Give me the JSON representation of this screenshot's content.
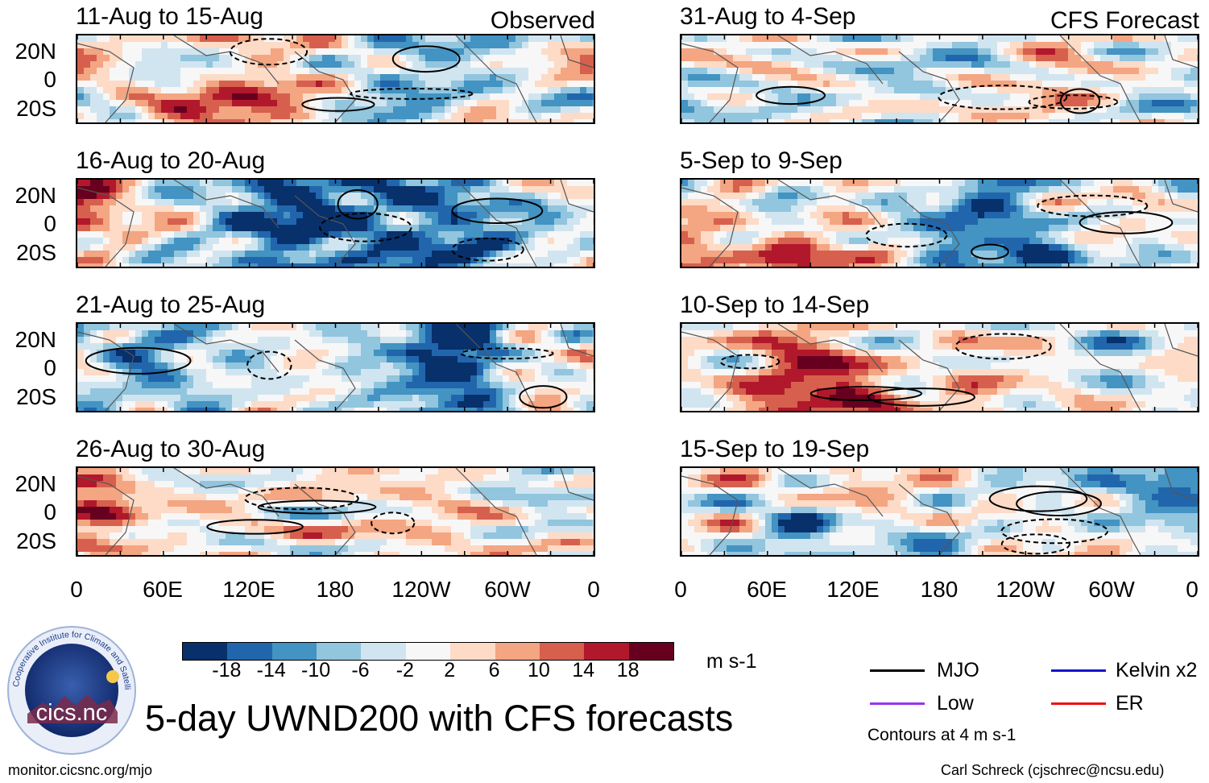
{
  "figure": {
    "main_title": "5-day UWND200 with CFS forecasts",
    "observed_label": "Observed",
    "forecast_label": "CFS Forecast",
    "units_label": "m s-1",
    "contours_note": "Contours at 4 m s-1",
    "website": "monitor.cicsnc.org/mjo",
    "credit": "Carl Schreck (cjschrec@ncsu.edu)",
    "logo": {
      "wordmark": "cics.nc",
      "ring_text": "Cooperative Institute for Climate and Satellites",
      "icon": "globe-logo"
    }
  },
  "chart_data": {
    "type": "heatmap",
    "variable": "200-hPa zonal wind anomaly (5-day means)",
    "units": "m s-1",
    "colorbar": {
      "levels": [
        "-18",
        "-14",
        "-10",
        "-6",
        "-2",
        "2",
        "6",
        "10",
        "14",
        "18"
      ],
      "colors": [
        "#08306b",
        "#2166ac",
        "#4393c3",
        "#92c5de",
        "#d1e5f0",
        "#f7f7f7",
        "#fddbc7",
        "#f4a582",
        "#d6604d",
        "#b2182b",
        "#67001f"
      ]
    },
    "axes": {
      "lat_ticks": [
        "20N",
        "0",
        "20S"
      ],
      "lon_ticks": [
        "0",
        "60E",
        "120E",
        "180",
        "120W",
        "60W",
        "0"
      ],
      "lat_range": [
        -30,
        30
      ],
      "lon_range": [
        0,
        360
      ]
    },
    "legend": [
      {
        "label": "MJO",
        "color": "#000000"
      },
      {
        "label": "Kelvin x2",
        "color": "#1515cc"
      },
      {
        "label": "Low",
        "color": "#9933ee"
      },
      {
        "label": "ER",
        "color": "#ee1111"
      }
    ],
    "contour_interval": 4,
    "panels": [
      {
        "period": "11-Aug to 15-Aug",
        "kind": "Observed",
        "seed": 11
      },
      {
        "period": "16-Aug to 20-Aug",
        "kind": "Observed",
        "seed": 23
      },
      {
        "period": "21-Aug to 25-Aug",
        "kind": "Observed",
        "seed": 37
      },
      {
        "period": "26-Aug to 30-Aug",
        "kind": "Observed",
        "seed": 41
      },
      {
        "period": "31-Aug to 4-Sep",
        "kind": "CFS Forecast",
        "seed": 53
      },
      {
        "period": "5-Sep to 9-Sep",
        "kind": "CFS Forecast",
        "seed": 67
      },
      {
        "period": "10-Sep to 14-Sep",
        "kind": "CFS Forecast",
        "seed": 79
      },
      {
        "period": "15-Sep to 19-Sep",
        "kind": "CFS Forecast",
        "seed": 83
      }
    ]
  }
}
